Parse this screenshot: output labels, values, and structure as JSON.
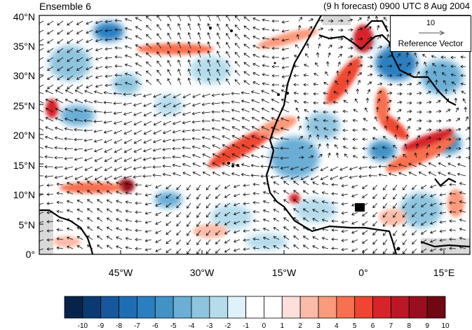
{
  "header": {
    "left_title": "Ensemble 6",
    "right_title": "(9 h forecast) 0900 UTC 8 Aug 2004"
  },
  "axes": {
    "y_ticks": [
      "40°N",
      "35°N",
      "30°N",
      "25°N",
      "20°N",
      "15°N",
      "10°N",
      "5°N",
      "0°"
    ],
    "x_ticks": [
      "45°W",
      "30°W",
      "15°W",
      "0°",
      "15°E"
    ]
  },
  "reference_vector": {
    "value": "10",
    "label": "Reference Vector"
  },
  "colorbar": {
    "labels": [
      "-10",
      "-9",
      "-8",
      "-7",
      "-6",
      "-5",
      "-4",
      "-3",
      "-2",
      "-1",
      "0",
      "1",
      "2",
      "3",
      "4",
      "5",
      "6",
      "7",
      "8",
      "9",
      "10"
    ],
    "colors": [
      "#08234a",
      "#0b3a73",
      "#15589c",
      "#1f6db3",
      "#2b7fc0",
      "#4292c6",
      "#6baed6",
      "#8fc4df",
      "#b6dcec",
      "#dff1fa",
      "#ffffff",
      "#ffffff",
      "#fde0dc",
      "#fcbba8",
      "#fb9a7c",
      "#f7704f",
      "#ee4633",
      "#d7232a",
      "#bb1726",
      "#9a0f1f",
      "#6f0812"
    ]
  },
  "map": {
    "region": "North Africa and tropical Atlantic",
    "lon_range": [
      -60,
      20
    ],
    "lat_range": [
      0,
      40
    ]
  }
}
